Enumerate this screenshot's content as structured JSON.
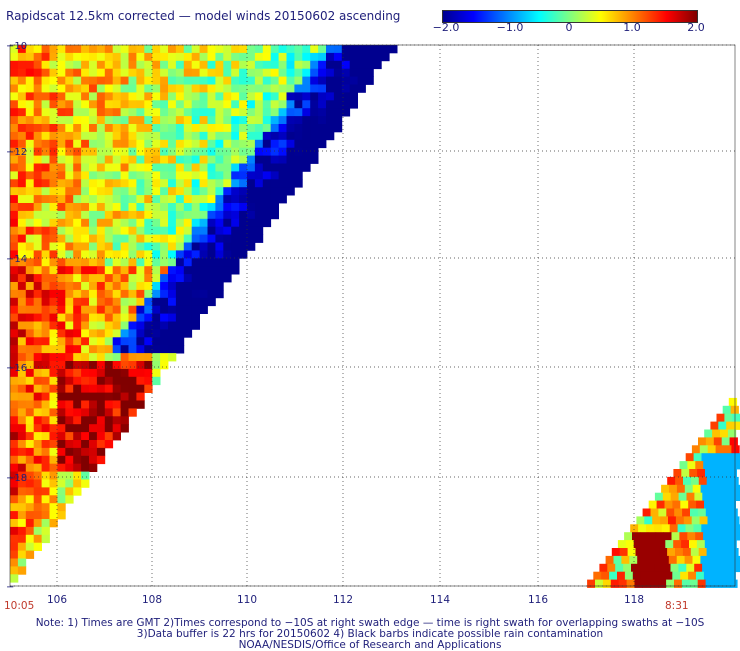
{
  "title": "Rapidscat 12.5km corrected — model winds 20150602 ascending",
  "colorbar": {
    "ticks": [
      "−2.0",
      "−1.0",
      "0",
      "1.0",
      "2.0"
    ],
    "range": [
      -2.0,
      2.0
    ]
  },
  "lat_labels": [
    "−10",
    "−12",
    "−14",
    "−16",
    "−18",
    "−"
  ],
  "lon_labels": [
    "106",
    "108",
    "110",
    "112",
    "114",
    "116",
    "118"
  ],
  "time_left": "10:05",
  "time_right": "8:31",
  "notes": [
    "Note: 1) Times are GMT 2)Times correspond to −10S at right swath edge — time is right swath for overlapping swaths at −10S",
    "3)Data buffer is 22 hrs for 20150602 4) Black barbs indicate possible rain contamination",
    "NOAA/NESDIS/Office of Research and Applications"
  ],
  "colors": {
    "text": "#1f1f7a",
    "grid": "#333333",
    "time": "#c0392b"
  }
}
